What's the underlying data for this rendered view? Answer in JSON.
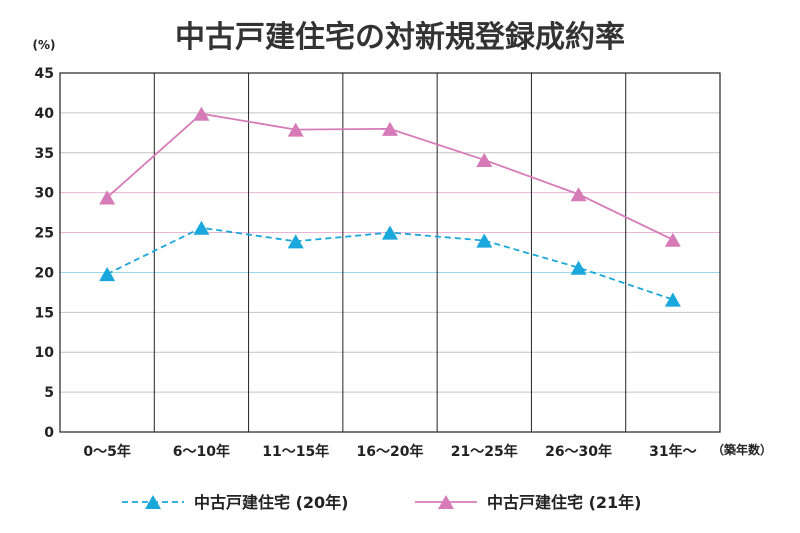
{
  "chart_data": {
    "type": "line",
    "title": "中古戸建住宅の対新規登録成約率",
    "ylabel": "(%)",
    "xlabel": "（築年数）",
    "categories": [
      "0～5年",
      "6～10年",
      "11～15年",
      "16～20年",
      "21～25年",
      "26～30年",
      "31年～"
    ],
    "ylim": [
      0,
      45
    ],
    "yticks": [
      0,
      5,
      10,
      15,
      20,
      25,
      30,
      35,
      40,
      45
    ],
    "grid": true,
    "legend_position": "bottom",
    "series": [
      {
        "name": "中古戸建住宅 (20年)",
        "values": [
          19.8,
          25.6,
          23.9,
          25.0,
          24.0,
          20.6,
          16.6
        ],
        "color": "#1aa7dc",
        "line_style": "dashed",
        "marker": "triangle"
      },
      {
        "name": "中古戸建住宅 (21年)",
        "values": [
          29.4,
          39.9,
          37.9,
          38.0,
          34.1,
          29.8,
          24.1
        ],
        "color": "#d77bb8",
        "line_style": "solid",
        "marker": "triangle"
      }
    ]
  }
}
